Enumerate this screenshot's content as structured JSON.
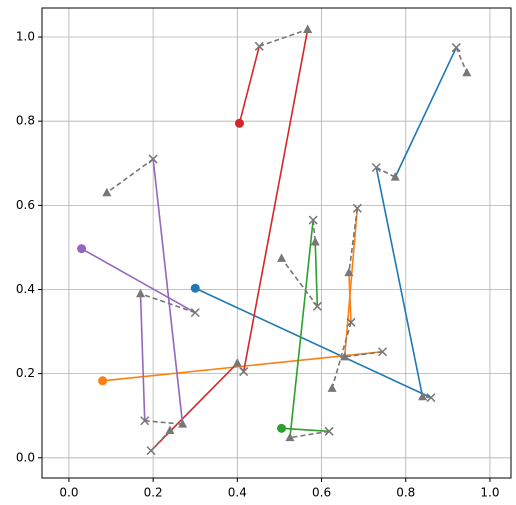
{
  "chart_data": {
    "type": "path",
    "xlim": [
      -0.064,
      1.05
    ],
    "ylim": [
      -0.048,
      1.069
    ],
    "xticks": [
      {
        "value": 0,
        "label": "0.0"
      },
      {
        "value": 0.2,
        "label": "0.2"
      },
      {
        "value": 0.4,
        "label": "0.4"
      },
      {
        "value": 0.6,
        "label": "0.6"
      },
      {
        "value": 0.8,
        "label": "0.8"
      },
      {
        "value": 1,
        "label": "1.0"
      }
    ],
    "yticks": [
      {
        "value": 0,
        "label": "0.0"
      },
      {
        "value": 0.2,
        "label": "0.2"
      },
      {
        "value": 0.4,
        "label": "0.4"
      },
      {
        "value": 0.6,
        "label": "0.6"
      },
      {
        "value": 0.8,
        "label": "0.8"
      },
      {
        "value": 1,
        "label": "1.0"
      }
    ],
    "grid": true,
    "marker_color": "#777777",
    "series": [
      {
        "color": "#1f77b4",
        "x": [
          0.3,
          0.86,
          0.84,
          0.73,
          0.775,
          0.92,
          0.945
        ],
        "y": [
          0.403,
          0.143,
          0.145,
          0.69,
          0.667,
          0.975,
          0.915
        ]
      },
      {
        "color": "#ff7f0e",
        "x": [
          0.08,
          0.745,
          0.655,
          0.685,
          0.665,
          0.67,
          0.625
        ],
        "y": [
          0.183,
          0.252,
          0.24,
          0.593,
          0.44,
          0.322,
          0.165
        ]
      },
      {
        "color": "#2ca02c",
        "x": [
          0.505,
          0.618,
          0.525,
          0.58,
          0.585,
          0.59,
          0.505
        ],
        "y": [
          0.07,
          0.063,
          0.048,
          0.565,
          0.513,
          0.36,
          0.474
        ]
      },
      {
        "color": "#d62728",
        "x": [
          0.405,
          0.452,
          0.567,
          0.415,
          0.4,
          0.195,
          0.24
        ],
        "y": [
          0.795,
          0.978,
          1.018,
          0.205,
          0.225,
          0.017,
          0.065
        ]
      },
      {
        "color": "#9467bd",
        "x": [
          0.03,
          0.3,
          0.17,
          0.18,
          0.27,
          0.2,
          0.09
        ],
        "y": [
          0.497,
          0.345,
          0.39,
          0.088,
          0.08,
          0.71,
          0.63
        ]
      }
    ]
  }
}
